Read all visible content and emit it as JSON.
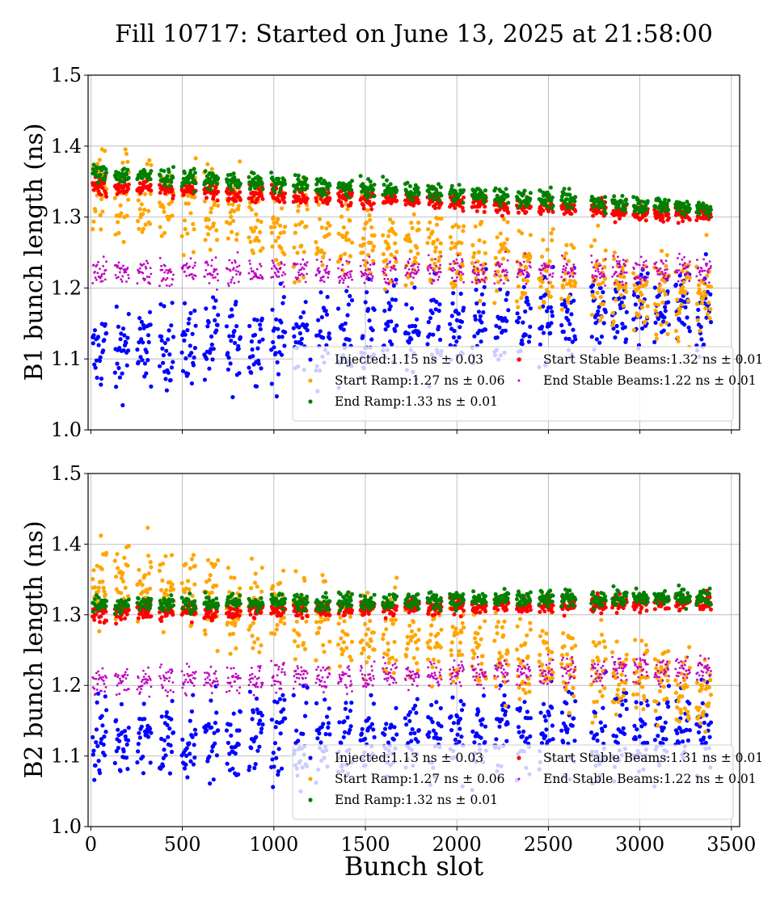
{
  "title": "Fill 10717: Started on June 13, 2025 at 21:58:00",
  "colors": {
    "injected": "#0000ff",
    "start_ramp": "#ffa500",
    "end_ramp": "#008000",
    "start_stable": "#ff0000",
    "end_stable": "#bf00bf"
  },
  "chart_data": [
    {
      "type": "scatter",
      "panel": "top",
      "ylabel": "B1 bunch length (ns)",
      "xlabel": "",
      "xlim": [
        -15,
        3545
      ],
      "ylim": [
        1.0,
        1.5
      ],
      "xticks": [
        "0",
        "500",
        "1000",
        "1500",
        "2000",
        "2500",
        "3000",
        "3500"
      ],
      "yticks": [
        "1.0",
        "1.1",
        "1.2",
        "1.3",
        "1.4",
        "1.5"
      ],
      "grid": true,
      "legend_position": "lower-right",
      "series": [
        {
          "key": "injected",
          "label": "Injected:1.15 ns ± 0.03",
          "start": 1.11,
          "end": 1.17,
          "spread": 0.03
        },
        {
          "key": "start_ramp",
          "label": "Start Ramp:1.27 ns ± 0.06",
          "start": 1.34,
          "end": 1.18,
          "spread": 0.03
        },
        {
          "key": "end_ramp",
          "label": "End Ramp:1.33 ns ± 0.01",
          "start": 1.362,
          "end": 1.312,
          "spread": 0.006
        },
        {
          "key": "start_stable",
          "label": "Start Stable Beams:1.32 ns ± 0.01",
          "start": 1.345,
          "end": 1.302,
          "spread": 0.006
        },
        {
          "key": "end_stable",
          "label": "End Stable Beams:1.22 ns ± 0.01",
          "start": 1.222,
          "end": 1.226,
          "spread": 0.01
        }
      ]
    },
    {
      "type": "scatter",
      "panel": "bottom",
      "ylabel": "B2 bunch length (ns)",
      "xlabel": "Bunch slot",
      "xlim": [
        -15,
        3545
      ],
      "ylim": [
        1.0,
        1.5
      ],
      "xticks": [
        "0",
        "500",
        "1000",
        "1500",
        "2000",
        "2500",
        "3000",
        "3500"
      ],
      "yticks": [
        "1.0",
        "1.1",
        "1.2",
        "1.3",
        "1.4",
        "1.5"
      ],
      "grid": true,
      "legend_position": "lower-right",
      "series": [
        {
          "key": "injected",
          "label": "Injected:1.13 ns ± 0.03",
          "start": 1.12,
          "end": 1.14,
          "spread": 0.03
        },
        {
          "key": "start_ramp",
          "label": "Start Ramp:1.27 ns ± 0.06",
          "start": 1.35,
          "end": 1.19,
          "spread": 0.03
        },
        {
          "key": "end_ramp",
          "label": "End Ramp:1.32 ns ± 0.01",
          "start": 1.315,
          "end": 1.325,
          "spread": 0.006
        },
        {
          "key": "start_stable",
          "label": "Start Stable Beams:1.31 ns ± 0.01",
          "start": 1.303,
          "end": 1.318,
          "spread": 0.006
        },
        {
          "key": "end_stable",
          "label": "End Stable Beams:1.22 ns ± 0.01",
          "start": 1.205,
          "end": 1.225,
          "spread": 0.01
        }
      ]
    }
  ]
}
